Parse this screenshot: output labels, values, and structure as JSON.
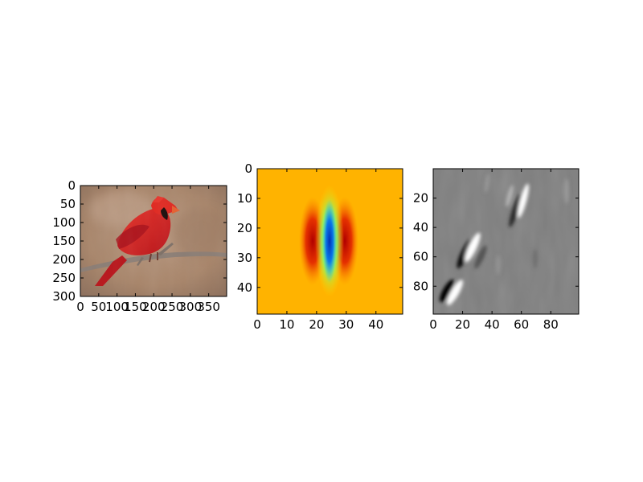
{
  "chart_data": [
    {
      "type": "heatmap",
      "content": "photograph of a red cardinal perched on a branch",
      "xlim": [
        0,
        399
      ],
      "ylim": [
        0,
        300
      ],
      "xticks": [
        "0",
        "50",
        "100",
        "150",
        "200",
        "250",
        "300",
        "350"
      ],
      "yticks": [
        "0",
        "50",
        "100",
        "150",
        "200",
        "250",
        "300"
      ],
      "colors": {
        "background": "#a8856a",
        "bird": "#d4201c",
        "branch": "#8b7d74"
      }
    },
    {
      "type": "heatmap",
      "content": "vertically elongated Gabor-like filter kernel (jet colormap)",
      "xlim": [
        0,
        49
      ],
      "ylim": [
        0,
        49
      ],
      "xticks": [
        "0",
        "10",
        "20",
        "30",
        "40"
      ],
      "yticks": [
        "0",
        "10",
        "20",
        "30",
        "40"
      ],
      "colors": {
        "background": "#ffb300",
        "negative_lobes": "#c80000",
        "center": "#0044c8",
        "transition": "#3cf0c0"
      }
    },
    {
      "type": "heatmap",
      "content": "grayscale filter response with diagonal white/black edge streaks",
      "xlim": [
        0,
        99
      ],
      "ylim": [
        0,
        99
      ],
      "xticks": [
        "0",
        "20",
        "40",
        "60",
        "80"
      ],
      "yticks": [
        "20",
        "40",
        "60",
        "80"
      ],
      "colors": {
        "background": "#7f7f7f",
        "positive": "#ffffff",
        "negative": "#000000"
      }
    }
  ]
}
